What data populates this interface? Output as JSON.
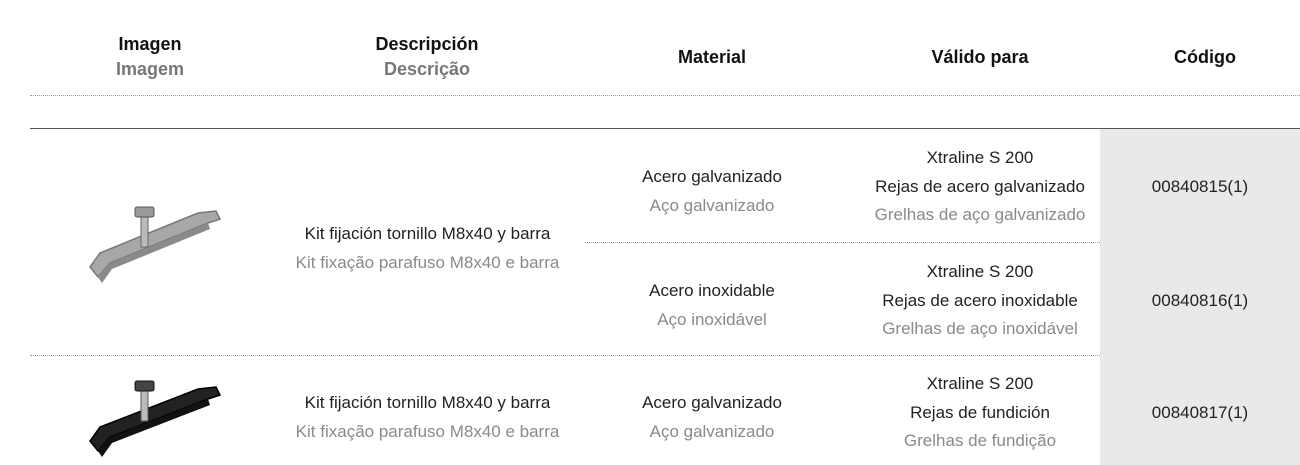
{
  "header": {
    "columns": [
      {
        "primary": "Imagen",
        "secondary": "Imagem"
      },
      {
        "primary": "Descripción",
        "secondary": "Descrição"
      },
      {
        "primary": "Material"
      },
      {
        "primary": "Válido para"
      },
      {
        "primary": "Código"
      }
    ]
  },
  "table": {
    "products": [
      {
        "description": {
          "es": "Kit fijación tornillo M8x40 y barra",
          "pt": "Kit fixação parafuso M8x40 e barra"
        },
        "variants": [
          {
            "material": {
              "es": "Acero galvanizado",
              "pt": "Aço galvanizado"
            },
            "valid_for": [
              "Xtraline S 200",
              "Rejas de acero galvanizado",
              "Grelhas de aço galvanizado"
            ],
            "code": "00840815(1)"
          },
          {
            "material": {
              "es": "Acero inoxidable",
              "pt": "Aço inoxidável"
            },
            "valid_for": [
              "Xtraline S 200",
              "Rejas de acero inoxidable",
              "Grelhas de aço inoxidável"
            ],
            "code": "00840816(1)"
          }
        ]
      },
      {
        "description": {
          "es": "Kit fijación tornillo M8x40 y barra",
          "pt": "Kit fixação parafuso M8x40 e barra"
        },
        "variants": [
          {
            "material": {
              "es": "Acero galvanizado",
              "pt": "Aço galvanizado"
            },
            "valid_for": [
              "Xtraline S 200",
              "Rejas de fundición",
              "Grelhas de fundição"
            ],
            "code": "00840817(1)"
          }
        ]
      }
    ]
  }
}
